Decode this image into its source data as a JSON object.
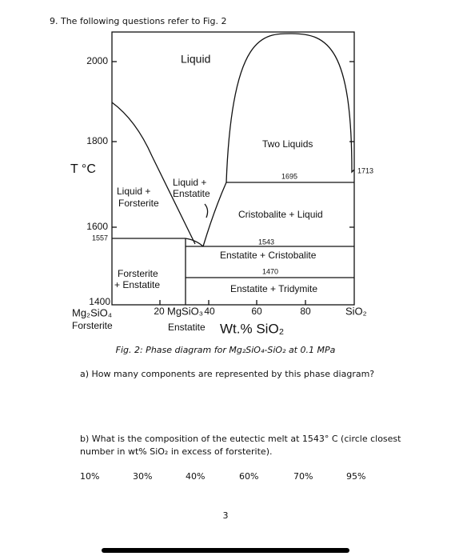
{
  "heading": "9. The following questions refer to Fig. 2",
  "figure": {
    "y_axis_label": "T °C",
    "y_ticks": [
      "2000",
      "1800",
      "1600",
      "1557",
      "1400"
    ],
    "x_ticks": [
      "20",
      "40",
      "60",
      "80"
    ],
    "x_end_labels": [
      "Mg₂SiO₄",
      "Forsterite",
      "MgSiO₃",
      "Enstatite",
      "SiO₂"
    ],
    "x_axis_label": "Wt.% SiO₂",
    "regions": [
      "Liquid",
      "Liquid +",
      "Forsterite",
      "Liquid +",
      "Enstatite",
      "Two Liquids",
      "Cristobalite + Liquid",
      "Enstatite + Cristobalite",
      "Enstatite + Tridymite",
      "Forsterite",
      "+ Enstatite"
    ],
    "isotherms": [
      "1695",
      "1713",
      "1543",
      "1470"
    ],
    "caption": "Fig. 2: Phase diagram for Mg₂SiO₄-SiO₂ at 0.1 MPa"
  },
  "questions": [
    {
      "text": [
        "a)  How many components are represented by this phase diagram?"
      ]
    },
    {
      "text": [
        "b) What is the composition of the eutectic melt at 1543° C (circle closest",
        "number in wt% SiO₂ in excess of forsterite)."
      ],
      "options": [
        "10%",
        "30%",
        "40%",
        "60%",
        "70%",
        "95%"
      ]
    }
  ],
  "page_number": "3"
}
